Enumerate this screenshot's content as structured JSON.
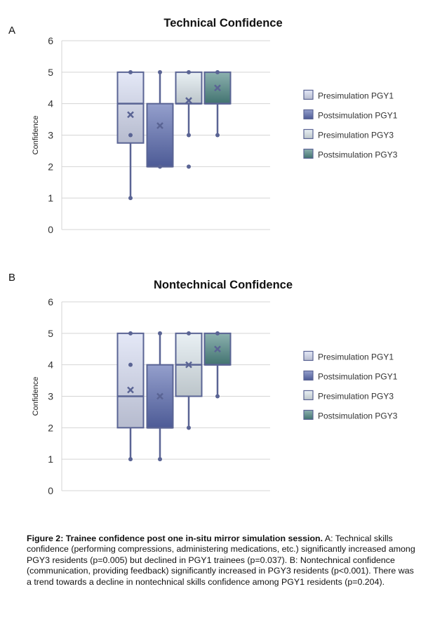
{
  "chart_data": [
    {
      "type": "box",
      "panel_label": "A",
      "title": "Technical Confidence",
      "ylabel": "Confidence",
      "ylim": [
        0,
        6
      ],
      "yticks": [
        "0",
        "1",
        "2",
        "3",
        "4",
        "5",
        "6"
      ],
      "grid": true,
      "legend_position": "right",
      "series": [
        {
          "name": "Presimulation PGY1",
          "color": "#d6dcf2",
          "min": 1,
          "q1": 2.75,
          "median": 4,
          "q3": 5,
          "max": 5,
          "mean": 3.65,
          "outliers": [
            3
          ]
        },
        {
          "name": "Postsimulation PGY1",
          "color": "#5a6bb0",
          "min": 2,
          "q1": 2,
          "median": 2,
          "q3": 4,
          "max": 5,
          "mean": 3.3,
          "outliers": []
        },
        {
          "name": "Presimulation PGY3",
          "color": "#dde8ee",
          "min": 3,
          "q1": 4,
          "median": 4,
          "q3": 5,
          "max": 5,
          "mean": 4.1,
          "outliers": [
            2
          ]
        },
        {
          "name": "Postsimulation PGY3",
          "color": "#4e8784",
          "min": 3,
          "q1": 4,
          "median": 4,
          "q3": 5,
          "max": 5,
          "mean": 4.5,
          "outliers": []
        }
      ]
    },
    {
      "type": "box",
      "panel_label": "B",
      "title": "Nontechnical Confidence",
      "ylabel": "Confidence",
      "ylim": [
        0,
        6
      ],
      "yticks": [
        "0",
        "1",
        "2",
        "3",
        "4",
        "5",
        "6"
      ],
      "grid": true,
      "legend_position": "right",
      "series": [
        {
          "name": "Presimulation PGY1",
          "color": "#d6dcf2",
          "min": 1,
          "q1": 2,
          "median": 3,
          "q3": 5,
          "max": 5,
          "mean": 3.2,
          "outliers": [
            4
          ]
        },
        {
          "name": "Postsimulation PGY1",
          "color": "#5a6bb0",
          "min": 1,
          "q1": 2,
          "median": 2,
          "q3": 4,
          "max": 5,
          "mean": 3.0,
          "outliers": []
        },
        {
          "name": "Presimulation PGY3",
          "color": "#dde8ee",
          "min": 2,
          "q1": 3,
          "median": 4,
          "q3": 5,
          "max": 5,
          "mean": 4.0,
          "outliers": []
        },
        {
          "name": "Postsimulation PGY3",
          "color": "#4e8784",
          "min": 3,
          "q1": 4,
          "median": 4,
          "q3": 5,
          "max": 5,
          "mean": 4.5,
          "outliers": []
        }
      ]
    }
  ],
  "caption": {
    "bold": "Figure 2: Trainee confidence post one in-situ mirror simulation session.",
    "text": " A: Technical skills confidence (performing compressions, administering medications, etc.) significantly increased among PGY3 residents (p=0.005) but declined in PGY1 trainees (p=0.037). B: Nontechnical confidence (communication, providing feedback) significantly increased in PGY3 residents (p<0.001). There was a trend towards a decline in nontechnical skills confidence among PGY1 residents (p=0.204)."
  }
}
